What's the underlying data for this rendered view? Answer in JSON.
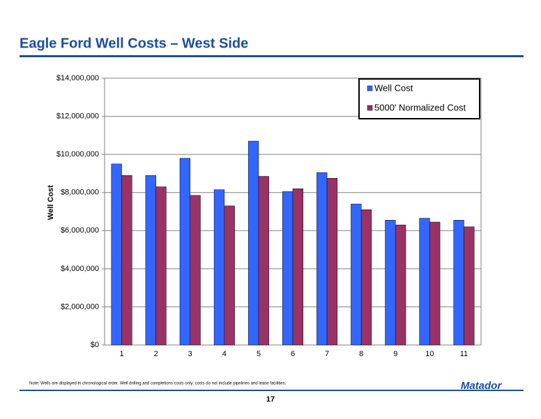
{
  "chart_data": {
    "type": "bar",
    "title": "Eagle Ford Well Costs – West Side",
    "y_label": "Well Cost",
    "categories": [
      "1",
      "2",
      "3",
      "4",
      "5",
      "6",
      "7",
      "8",
      "9",
      "10",
      "11"
    ],
    "series": [
      {
        "name": "Well Cost",
        "color": "#3366ff",
        "values": [
          9500000,
          8900000,
          9800000,
          8150000,
          10700000,
          8050000,
          9050000,
          7400000,
          6550000,
          6650000,
          6550000
        ]
      },
      {
        "name": "5000' Normalized Cost",
        "color": "#993366",
        "values": [
          8900000,
          8300000,
          7850000,
          7300000,
          8850000,
          8200000,
          8750000,
          7100000,
          6300000,
          6450000,
          6200000
        ]
      }
    ],
    "ylim": [
      0,
      14000000
    ],
    "yticks": [
      {
        "value": 0,
        "label": "$0"
      },
      {
        "value": 2000000,
        "label": "$2,000,000"
      },
      {
        "value": 4000000,
        "label": "$4,000,000"
      },
      {
        "value": 6000000,
        "label": "$6,000,000"
      },
      {
        "value": 8000000,
        "label": "$8,000,000"
      },
      {
        "value": 10000000,
        "label": "$10,000,000"
      },
      {
        "value": 12000000,
        "label": "$12,000,000"
      },
      {
        "value": 14000000,
        "label": "$14,000,000"
      }
    ],
    "grid": true,
    "legend": "top-right"
  },
  "footnote": "Note: Wells are displayed in chronological order.  Well drilling and completions costs only; costs do not include pipelines and lease facilities.",
  "page_number": "17",
  "logo": "Matador"
}
